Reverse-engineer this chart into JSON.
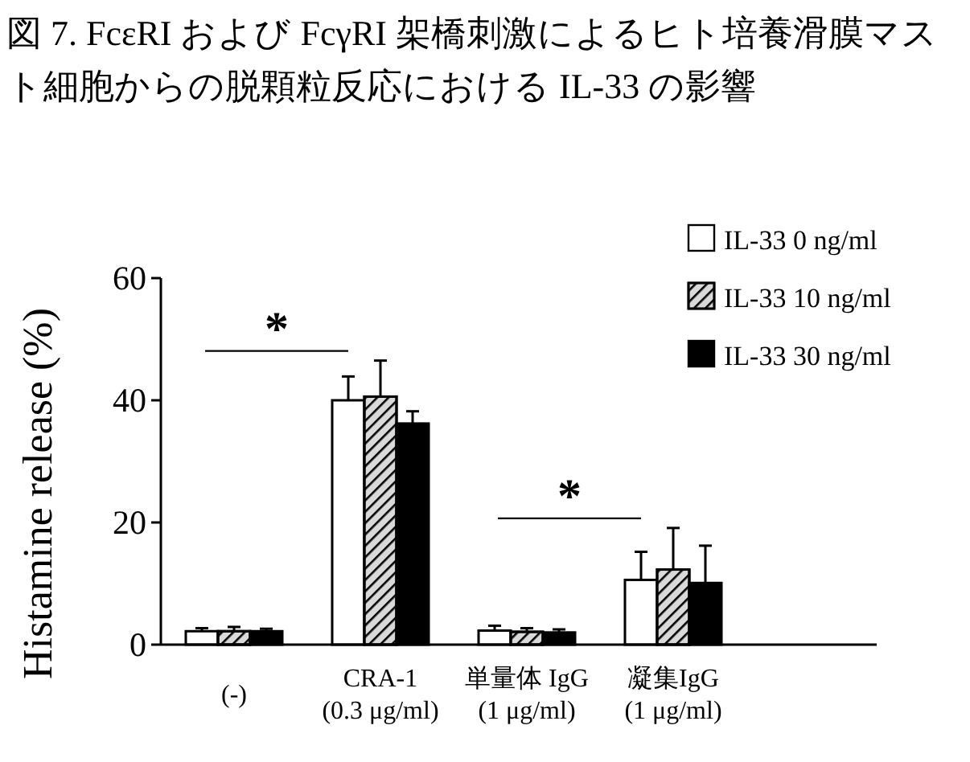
{
  "chart_data": {
    "type": "bar",
    "title": "図 7. FcεRI および FcγRI 架橋刺激によるヒト培養滑膜マスト細胞からの脱顆粒反応における IL-33 の影響",
    "ylabel": "Histamine release (%)",
    "categories": [
      "(-)",
      "CRA-1\n(0.3 μg/ml)",
      "単量体 IgG\n(1 μg/ml)",
      "凝集IgG\n(1 μg/ml)"
    ],
    "series": [
      {
        "name": "IL-33 0 ng/ml",
        "color": "#ffffff",
        "values": [
          2.2,
          40,
          2.3,
          10.6
        ],
        "errors": [
          [
            2.2,
            2.7
          ],
          [
            40,
            43.9
          ],
          [
            2.3,
            3.1
          ],
          [
            10.6,
            15.2
          ]
        ]
      },
      {
        "name": "IL-33 10 ng/ml",
        "color": "#d9d9d9",
        "values": [
          2.2,
          40.6,
          2.1,
          12.3
        ],
        "errors": [
          [
            2.2,
            2.9
          ],
          [
            40.6,
            46.5
          ],
          [
            2.1,
            2.7
          ],
          [
            12.3,
            19.1
          ]
        ]
      },
      {
        "name": "IL-33 30 ng/ml",
        "color": "#000000",
        "values": [
          2.2,
          36.2,
          2,
          10.1
        ],
        "errors": [
          [
            2.2,
            2.6
          ],
          [
            36.2,
            38.2
          ],
          [
            2,
            2.5
          ],
          [
            10.1,
            16.2
          ]
        ]
      }
    ],
    "ylim": [
      0,
      60
    ],
    "yticks": [
      0,
      20,
      40,
      60
    ],
    "grid": false,
    "legend": "top right",
    "annotations": [
      "*",
      "*"
    ]
  }
}
